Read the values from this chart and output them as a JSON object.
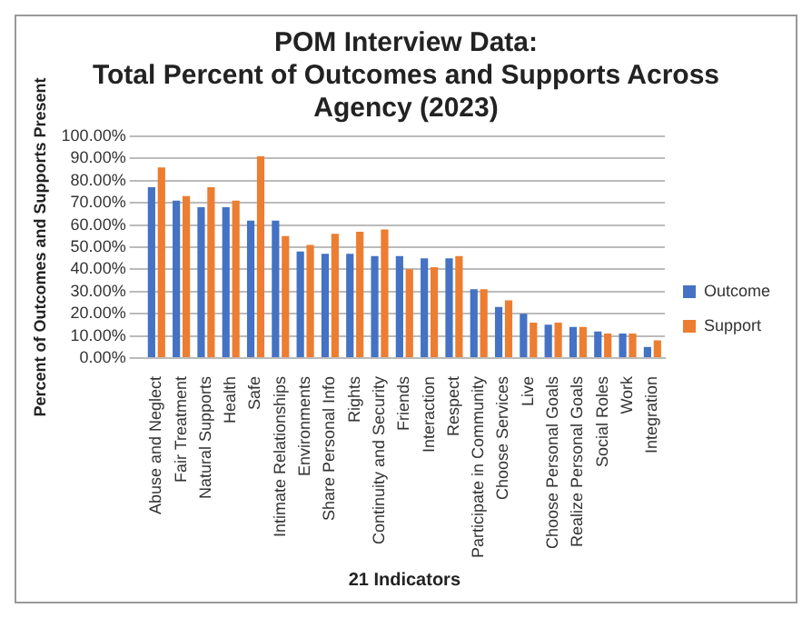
{
  "chart_data": {
    "type": "bar",
    "title": [
      "POM Interview Data:",
      "Total Percent of Outcomes and Supports Across",
      "Agency (2023)"
    ],
    "xlabel": "21 Indicators",
    "ylabel": "Percent of Outcomes and Supports Present",
    "categories": [
      "Abuse and Neglect",
      "Fair Treatment",
      "Natural Supports",
      "Health",
      "Safe",
      "Intimate Relationships",
      "Environments",
      "Share Personal Info",
      "Rights",
      "Continuity and Security",
      "Friends",
      "Interaction",
      "Respect",
      "Participate in Community",
      "Choose Services",
      "Live",
      "Choose Personal Goals",
      "Realize Personal Goals",
      "Social Roles",
      "Work",
      "Integration"
    ],
    "series": [
      {
        "name": "Outcome",
        "color": "#4472c4",
        "values": [
          77,
          71,
          68,
          68,
          62,
          62,
          48,
          47,
          47,
          46,
          46,
          45,
          45,
          31,
          23,
          20,
          15,
          14,
          12,
          11,
          5
        ]
      },
      {
        "name": "Support",
        "color": "#ed7d31",
        "values": [
          86,
          73,
          77,
          71,
          91,
          55,
          51,
          56,
          57,
          58,
          40,
          41,
          46,
          31,
          26,
          16,
          16,
          14,
          11,
          11,
          8
        ]
      }
    ],
    "ylim": [
      0,
      100
    ],
    "yticks": [
      {
        "value": 0,
        "label": "0.00%"
      },
      {
        "value": 10,
        "label": "10.00%"
      },
      {
        "value": 20,
        "label": "20.00%"
      },
      {
        "value": 30,
        "label": "30.00%"
      },
      {
        "value": 40,
        "label": "40.00%"
      },
      {
        "value": 50,
        "label": "50.00%"
      },
      {
        "value": 60,
        "label": "60.00%"
      },
      {
        "value": 70,
        "label": "70.00%"
      },
      {
        "value": 80,
        "label": "80.00%"
      },
      {
        "value": 90,
        "label": "90.00%"
      },
      {
        "value": 100,
        "label": "100.00%"
      }
    ],
    "grid": "y",
    "legend": "right"
  }
}
